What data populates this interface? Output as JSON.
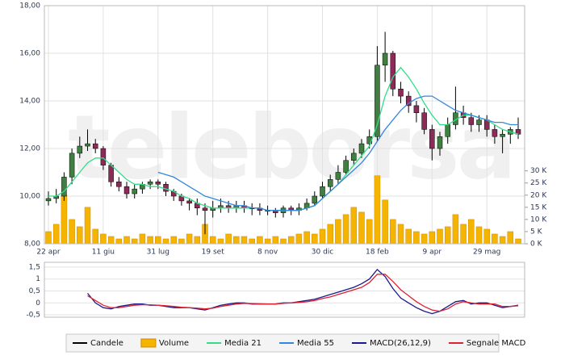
{
  "chart_data": [
    {
      "type": "candlestick",
      "watermark": "teleborsa",
      "up_color": "#3f7f3f",
      "down_color": "#8c2a58",
      "grid": true,
      "categories": [
        "22 apr",
        null,
        null,
        null,
        null,
        null,
        null,
        "11 giu",
        null,
        null,
        null,
        null,
        null,
        null,
        "31 lug",
        null,
        null,
        null,
        null,
        null,
        null,
        "19 set",
        null,
        null,
        null,
        null,
        null,
        null,
        "8 nov",
        null,
        null,
        null,
        null,
        null,
        null,
        "30 dic",
        null,
        null,
        null,
        null,
        null,
        null,
        "18 feb",
        null,
        null,
        null,
        null,
        null,
        null,
        "9 apr",
        null,
        null,
        null,
        null,
        null,
        null,
        "29 mag",
        null,
        null,
        null,
        null
      ],
      "ylim": [
        8,
        18
      ],
      "yticks": [
        {
          "value": 8,
          "label": "8,00"
        },
        {
          "value": 10,
          "label": "10,00"
        },
        {
          "value": 12,
          "label": "12,00"
        },
        {
          "value": 14,
          "label": "14,00"
        },
        {
          "value": 16,
          "label": "16,00"
        },
        {
          "value": 18,
          "label": "18,00"
        }
      ],
      "y2lim": [
        0,
        98
      ],
      "y2ticks": [
        {
          "value": 0,
          "label": "0 K"
        },
        {
          "value": 5,
          "label": "5 K"
        },
        {
          "value": 10,
          "label": "10 K"
        },
        {
          "value": 15,
          "label": "15 K"
        },
        {
          "value": 20,
          "label": "20 K"
        },
        {
          "value": 25,
          "label": "25 K"
        },
        {
          "value": 30,
          "label": "30 K"
        }
      ],
      "series": [
        {
          "name": "Candele",
          "color": "#000000",
          "open": [
            9.8,
            9.9,
            10.0,
            10.8,
            11.8,
            12.1,
            12.2,
            12.0,
            11.3,
            10.6,
            10.4,
            10.1,
            10.3,
            10.5,
            10.6,
            10.5,
            10.2,
            10.0,
            9.8,
            9.7,
            9.5,
            9.4,
            9.5,
            9.6,
            9.5,
            9.6,
            9.5,
            9.5,
            9.4,
            9.4,
            9.3,
            9.5,
            9.4,
            9.5,
            9.7,
            10.0,
            10.4,
            10.7,
            11.0,
            11.5,
            11.8,
            12.2,
            12.5,
            15.5,
            16.0,
            14.5,
            14.2,
            13.8,
            13.5,
            12.8,
            12.0,
            12.5,
            13.0,
            13.5,
            13.3,
            13.0,
            13.2,
            12.8,
            12.5,
            12.6,
            12.8
          ],
          "high": [
            10.2,
            10.3,
            11.0,
            12.0,
            12.5,
            12.8,
            12.4,
            12.1,
            11.4,
            10.8,
            10.6,
            10.5,
            10.6,
            10.7,
            10.7,
            10.6,
            10.3,
            10.1,
            9.9,
            9.9,
            9.7,
            9.8,
            9.9,
            9.8,
            9.8,
            9.8,
            9.7,
            9.7,
            9.6,
            9.5,
            9.6,
            9.6,
            9.7,
            9.9,
            10.2,
            10.6,
            10.9,
            11.3,
            11.7,
            12.0,
            12.4,
            12.8,
            16.3,
            16.9,
            16.1,
            14.8,
            14.4,
            14.0,
            13.7,
            13.0,
            12.7,
            13.3,
            14.6,
            13.8,
            13.5,
            13.4,
            13.4,
            13.0,
            12.8,
            12.9,
            13.3
          ],
          "low": [
            9.6,
            9.7,
            9.8,
            10.5,
            11.6,
            11.9,
            11.8,
            11.1,
            10.4,
            10.2,
            9.9,
            9.9,
            10.1,
            10.3,
            10.3,
            10.0,
            9.8,
            9.6,
            9.4,
            9.2,
            8.4,
            9.1,
            9.3,
            9.3,
            9.3,
            9.3,
            9.2,
            9.2,
            9.2,
            9.1,
            9.1,
            9.2,
            9.2,
            9.4,
            9.6,
            9.9,
            10.2,
            10.5,
            10.9,
            11.3,
            11.6,
            12.0,
            12.3,
            14.8,
            14.2,
            13.9,
            13.5,
            13.1,
            12.6,
            11.5,
            11.7,
            12.2,
            12.8,
            13.0,
            12.7,
            12.7,
            12.5,
            12.2,
            11.8,
            12.2,
            12.4
          ],
          "close": [
            9.9,
            10.0,
            10.8,
            11.8,
            12.1,
            12.2,
            12.0,
            11.3,
            10.6,
            10.4,
            10.1,
            10.3,
            10.5,
            10.6,
            10.5,
            10.2,
            10.0,
            9.8,
            9.7,
            9.5,
            9.4,
            9.5,
            9.6,
            9.5,
            9.6,
            9.5,
            9.5,
            9.4,
            9.4,
            9.3,
            9.5,
            9.4,
            9.5,
            9.7,
            10.0,
            10.4,
            10.7,
            11.0,
            11.5,
            11.8,
            12.2,
            12.5,
            15.5,
            16.0,
            14.5,
            14.2,
            13.8,
            13.5,
            12.8,
            12.0,
            12.5,
            13.0,
            13.5,
            13.3,
            13.0,
            13.2,
            12.8,
            12.5,
            12.6,
            12.8,
            12.6
          ]
        },
        {
          "name": "Volume",
          "color": "#f5b400",
          "axis": "y2",
          "values": [
            5,
            8,
            20,
            10,
            7,
            15,
            6,
            4,
            3,
            2,
            3,
            2,
            4,
            3,
            3,
            2,
            3,
            2,
            4,
            3,
            8,
            3,
            2,
            4,
            3,
            3,
            2,
            3,
            2,
            3,
            2,
            3,
            4,
            5,
            4,
            6,
            8,
            10,
            12,
            15,
            13,
            10,
            28,
            18,
            10,
            8,
            6,
            5,
            4,
            5,
            6,
            7,
            12,
            8,
            10,
            7,
            6,
            4,
            3,
            5,
            2
          ]
        },
        {
          "name": "Media 21",
          "color": "#33dd88",
          "values": [
            10.0,
            10.0,
            10.2,
            10.6,
            11.0,
            11.4,
            11.6,
            11.6,
            11.3,
            11.0,
            10.7,
            10.5,
            10.5,
            10.4,
            10.4,
            10.3,
            10.2,
            10.0,
            9.9,
            9.7,
            9.6,
            9.5,
            9.5,
            9.5,
            9.5,
            9.5,
            9.5,
            9.5,
            9.4,
            9.4,
            9.4,
            9.4,
            9.4,
            9.5,
            9.6,
            9.9,
            10.2,
            10.5,
            10.9,
            11.3,
            11.7,
            12.1,
            13.0,
            14.2,
            15.0,
            15.4,
            15.0,
            14.5,
            13.9,
            13.4,
            13.0,
            13.0,
            13.2,
            13.4,
            13.4,
            13.3,
            13.2,
            13.0,
            12.8,
            12.7,
            12.6
          ]
        },
        {
          "name": "Media 55",
          "color": "#3388dd",
          "values": [
            null,
            null,
            null,
            null,
            null,
            null,
            null,
            null,
            null,
            null,
            null,
            null,
            null,
            null,
            11.0,
            10.9,
            10.8,
            10.6,
            10.4,
            10.2,
            10.0,
            9.9,
            9.8,
            9.7,
            9.6,
            9.6,
            9.5,
            9.5,
            9.4,
            9.4,
            9.4,
            9.4,
            9.4,
            9.5,
            9.6,
            9.9,
            10.2,
            10.5,
            10.8,
            11.1,
            11.4,
            11.8,
            12.3,
            12.8,
            13.2,
            13.6,
            13.9,
            14.1,
            14.2,
            14.2,
            14.0,
            13.8,
            13.6,
            13.5,
            13.4,
            13.3,
            13.2,
            13.1,
            13.1,
            13.0,
            13.0
          ]
        }
      ]
    },
    {
      "type": "line",
      "grid": true,
      "ylim": [
        -0.6,
        1.7
      ],
      "yticks": [
        {
          "value": -0.5,
          "label": "-0,5"
        },
        0,
        {
          "value": 0.5,
          "label": "0,5"
        },
        1,
        {
          "value": 1.5,
          "label": "1,5"
        }
      ],
      "series": [
        {
          "name": "MACD(26,12,9)",
          "color": "#1a1a8c",
          "values": [
            null,
            null,
            null,
            null,
            null,
            0.4,
            0.0,
            -0.2,
            -0.25,
            -0.15,
            -0.1,
            -0.05,
            -0.05,
            -0.1,
            -0.1,
            -0.15,
            -0.2,
            -0.2,
            -0.2,
            -0.25,
            -0.3,
            -0.2,
            -0.1,
            -0.05,
            0,
            0,
            -0.05,
            -0.05,
            -0.05,
            -0.05,
            0,
            0,
            0.05,
            0.1,
            0.15,
            0.25,
            0.35,
            0.45,
            0.55,
            0.65,
            0.8,
            1.0,
            1.4,
            1.1,
            0.6,
            0.2,
            0.0,
            -0.2,
            -0.35,
            -0.45,
            -0.35,
            -0.15,
            0.05,
            0.1,
            -0.05,
            0.0,
            0.0,
            -0.1,
            -0.2,
            -0.15,
            -0.1
          ]
        },
        {
          "name": "Segnale MACD",
          "color": "#dd2233",
          "values": [
            null,
            null,
            null,
            null,
            null,
            0.3,
            0.1,
            -0.1,
            -0.2,
            -0.2,
            -0.15,
            -0.1,
            -0.08,
            -0.08,
            -0.1,
            -0.12,
            -0.15,
            -0.18,
            -0.2,
            -0.22,
            -0.25,
            -0.22,
            -0.15,
            -0.1,
            -0.05,
            -0.02,
            -0.03,
            -0.04,
            -0.05,
            -0.05,
            -0.02,
            0,
            0.02,
            0.05,
            0.1,
            0.18,
            0.25,
            0.35,
            0.45,
            0.55,
            0.65,
            0.85,
            1.2,
            1.2,
            0.9,
            0.55,
            0.3,
            0.05,
            -0.15,
            -0.3,
            -0.35,
            -0.25,
            -0.05,
            0.05,
            0.0,
            -0.05,
            -0.05,
            -0.05,
            -0.15,
            -0.15,
            -0.12
          ]
        }
      ]
    }
  ]
}
